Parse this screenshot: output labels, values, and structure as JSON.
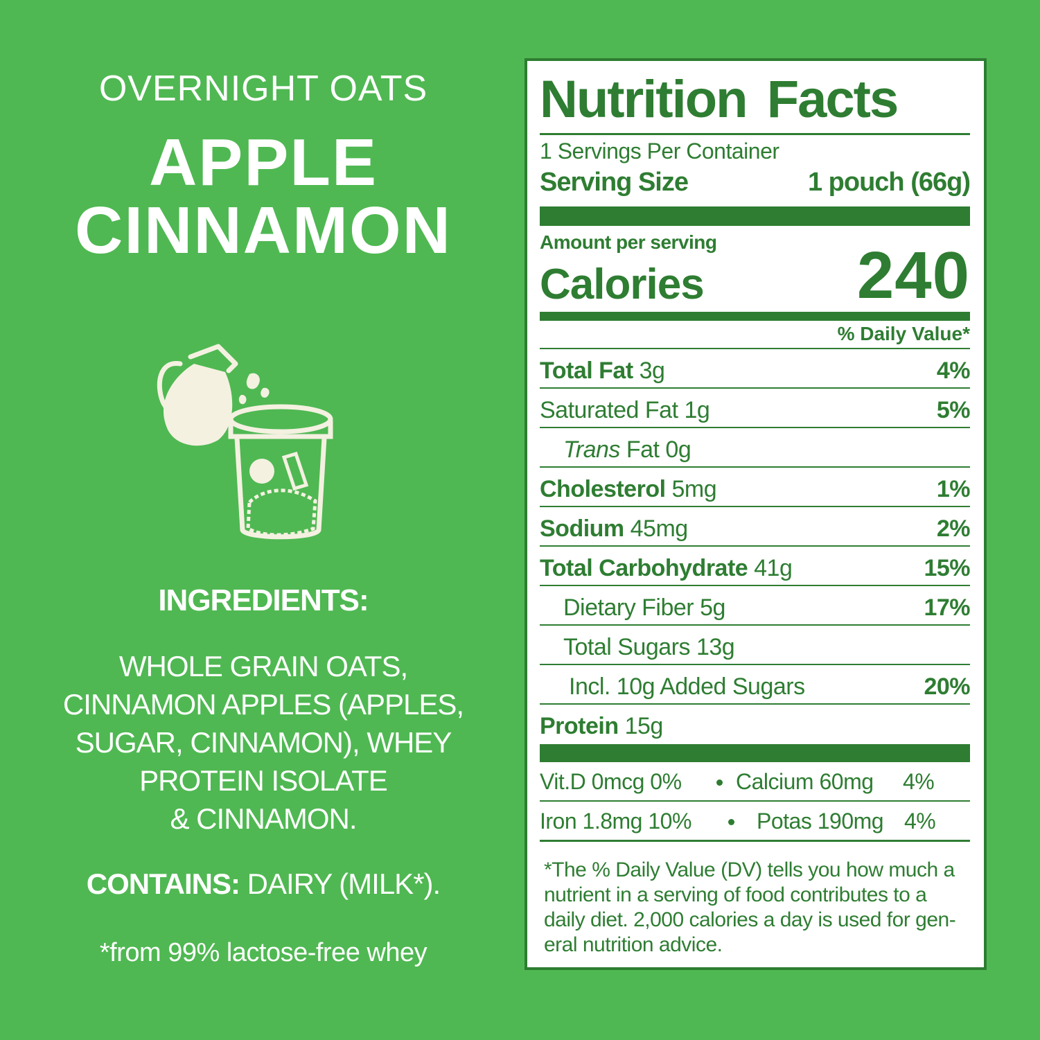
{
  "product": {
    "line": "OVERNIGHT OATS",
    "flavor": [
      "APPLE",
      "CINNAMON"
    ]
  },
  "ingredients": {
    "heading": "INGREDIENTS:",
    "lines": [
      "WHOLE GRAIN OATS,",
      "CINNAMON APPLES (APPLES,",
      "SUGAR, CINNAMON), WHEY",
      "PROTEIN ISOLATE",
      "& CINNAMON."
    ],
    "contains_label": "CONTAINS:",
    "contains": "DAIRY (MILK*).",
    "footnote": "*from 99% lactose-free whey"
  },
  "nutrition": {
    "title": "Nutrition Facts",
    "servings": "1 Servings Per Container",
    "serving_size_label": "Serving Size",
    "serving_size": "1 pouch (66g)",
    "amount_per_serving": "Amount per serving",
    "calories_label": "Calories",
    "calories": 240,
    "dv_header": "% Daily Value*",
    "rows": [
      {
        "name": "Total Fat",
        "amount": "3g",
        "dv": "4%"
      },
      {
        "name": "Saturated Fat",
        "amount": "1g",
        "dv": "5%"
      },
      {
        "name_italic": "Trans",
        "name": "Fat",
        "amount": "0g"
      },
      {
        "name": "Cholesterol",
        "amount": "5mg",
        "dv": "1%"
      },
      {
        "name": "Sodium",
        "amount": "45mg",
        "dv": "2%"
      },
      {
        "name": "Total Carbohydrate",
        "amount": "41g",
        "dv": "15%"
      },
      {
        "name": "Dietary Fiber",
        "amount": "5g",
        "dv": "17%"
      },
      {
        "name": "Total Sugars",
        "amount": "13g"
      },
      {
        "name": "Incl. 10g Added Sugars",
        "dv": "20%"
      },
      {
        "name": "Protein",
        "amount": "15g"
      }
    ],
    "micronutrients": [
      [
        {
          "name": "Vit.D",
          "amount": "0mcg",
          "dv": "0%"
        },
        {
          "name": "Calcium",
          "amount": "60mg",
          "dv": "4%"
        }
      ],
      [
        {
          "name": "Iron",
          "amount": "1.8mg",
          "dv": "10%"
        },
        {
          "name": "Potas",
          "amount": "190mg",
          "dv": "4%"
        }
      ]
    ],
    "footnote_lines": [
      "*The % Daily Value (DV) tells you how much a",
      "nutrient in a serving of food contributes to a",
      "daily diet. 2,000 calories a day is used for gen-",
      "eral nutrition advice."
    ]
  }
}
